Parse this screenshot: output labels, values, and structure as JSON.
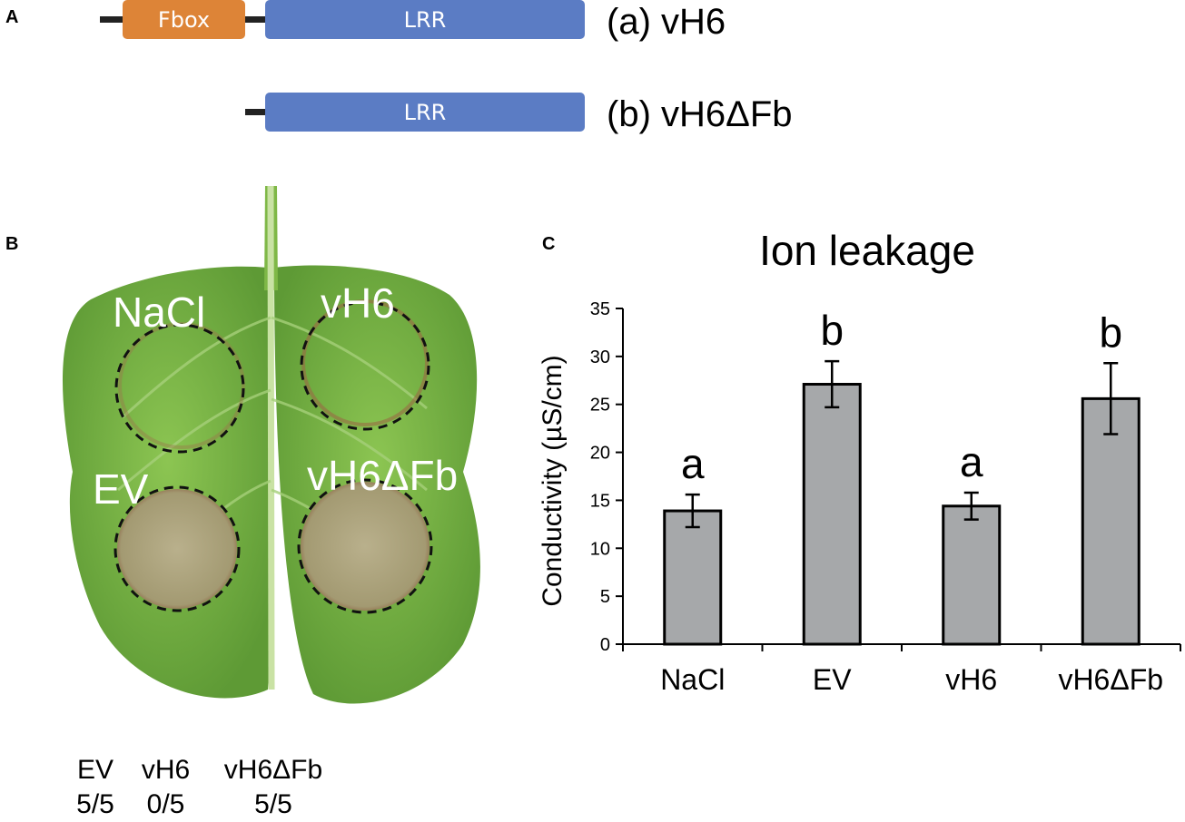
{
  "panels": {
    "a": "A",
    "b": "B",
    "c": "C"
  },
  "constructs": [
    {
      "label": "(a) vH6",
      "domains": [
        "Fbox",
        "LRR"
      ]
    },
    {
      "label": "(b) vH6ΔFb",
      "domains": [
        "LRR"
      ]
    }
  ],
  "domain_colors": {
    "Fbox": "#dd8437",
    "LRR": "#5b7cc4",
    "linker": "#222222"
  },
  "leaf": {
    "spot_labels": [
      "NaCl",
      "vH6",
      "EV",
      "vH6ΔFb"
    ],
    "counts": [
      {
        "name": "EV",
        "ratio": "5/5"
      },
      {
        "name": "vH6",
        "ratio": "0/5"
      },
      {
        "name": "vH6ΔFb",
        "ratio": "5/5"
      }
    ],
    "colors": {
      "leaf": "#7fb847",
      "leaf_dark": "#5e9a35",
      "lesion": "#a8a07a",
      "lesion_edge": "#8a5a3c"
    }
  },
  "chart_data": {
    "type": "bar",
    "title": "Ion leakage",
    "ylabel": "Conductivity (µS/cm)",
    "xlabel": "",
    "categories": [
      "NaCl",
      "EV",
      "vH6",
      "vH6ΔFb"
    ],
    "values": [
      13.9,
      27.1,
      14.4,
      25.6
    ],
    "errors": [
      1.7,
      2.4,
      1.4,
      3.7
    ],
    "significance": [
      "a",
      "b",
      "a",
      "b"
    ],
    "ylim": [
      0,
      35
    ],
    "yticks": [
      0,
      5,
      10,
      15,
      20,
      25,
      30,
      35
    ],
    "bar_color": "#a6a8aa",
    "grid": false
  }
}
